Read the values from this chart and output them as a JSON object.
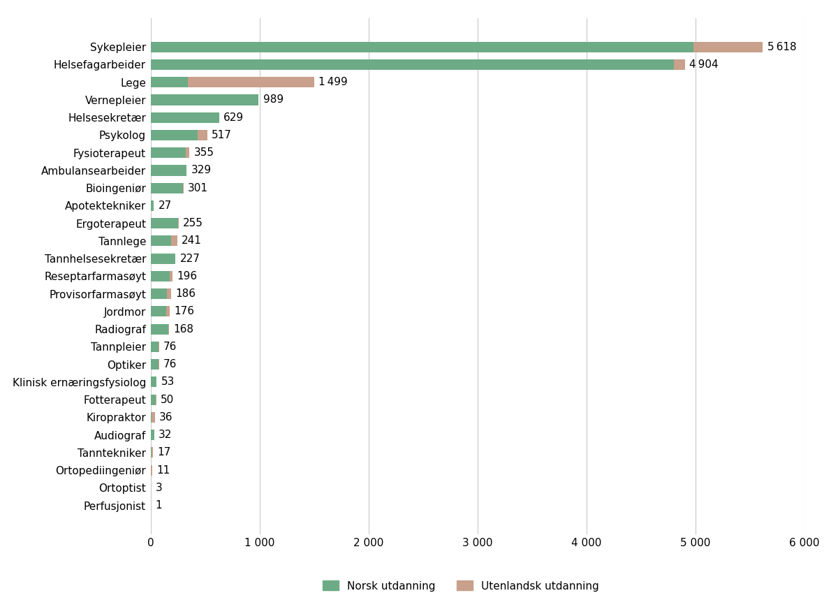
{
  "categories": [
    "Sykepleier",
    "Helsefagarbeider",
    "Lege",
    "Vernepleier",
    "Helsesekretær",
    "Psykolog",
    "Fysioterapeut",
    "Ambulansearbeider",
    "Bioingeniør",
    "Apotektekniker",
    "Ergoterapeut",
    "Tannlege",
    "Tannhelsesekretær",
    "Reseptarfarmasøyt",
    "Provisorfarmasøyt",
    "Jordmor",
    "Radiograf",
    "Tannpleier",
    "Optiker",
    "Klinisk ernæringsfysiolog",
    "Fotterapeut",
    "Kiropraktor",
    "Audiograf",
    "Tanntekniker",
    "Ortopediingeniør",
    "Ortoptist",
    "Perfusjonist"
  ],
  "norsk": [
    4983,
    4800,
    340,
    985,
    625,
    430,
    320,
    325,
    295,
    26,
    250,
    185,
    224,
    170,
    150,
    140,
    163,
    73,
    72,
    51,
    47,
    5,
    30,
    4,
    3,
    2,
    1
  ],
  "utenlandsk": [
    635,
    104,
    1159,
    4,
    4,
    87,
    35,
    4,
    6,
    1,
    5,
    56,
    3,
    26,
    36,
    36,
    5,
    3,
    4,
    2,
    3,
    31,
    2,
    13,
    8,
    1,
    0
  ],
  "totals": [
    5618,
    4904,
    1499,
    989,
    629,
    517,
    355,
    329,
    301,
    27,
    255,
    241,
    227,
    196,
    186,
    176,
    168,
    76,
    76,
    53,
    50,
    36,
    32,
    17,
    11,
    3,
    1
  ],
  "color_norsk": "#6dab86",
  "color_utenlandsk": "#c9a08c",
  "background_color": "#ffffff",
  "legend_norsk": "Norsk utdanning",
  "legend_utenlandsk": "Utenlandsk utdanning",
  "xlim": [
    0,
    6000
  ],
  "xticks": [
    0,
    1000,
    2000,
    3000,
    4000,
    5000,
    6000
  ],
  "xtick_labels": [
    "0",
    "1 000",
    "2 000",
    "3 000",
    "4 000",
    "5 000",
    "6 000"
  ],
  "bar_height": 0.6,
  "gridline_color": "#c8c8c8",
  "tick_fontsize": 11,
  "label_fontsize": 11,
  "annotation_fontsize": 11
}
